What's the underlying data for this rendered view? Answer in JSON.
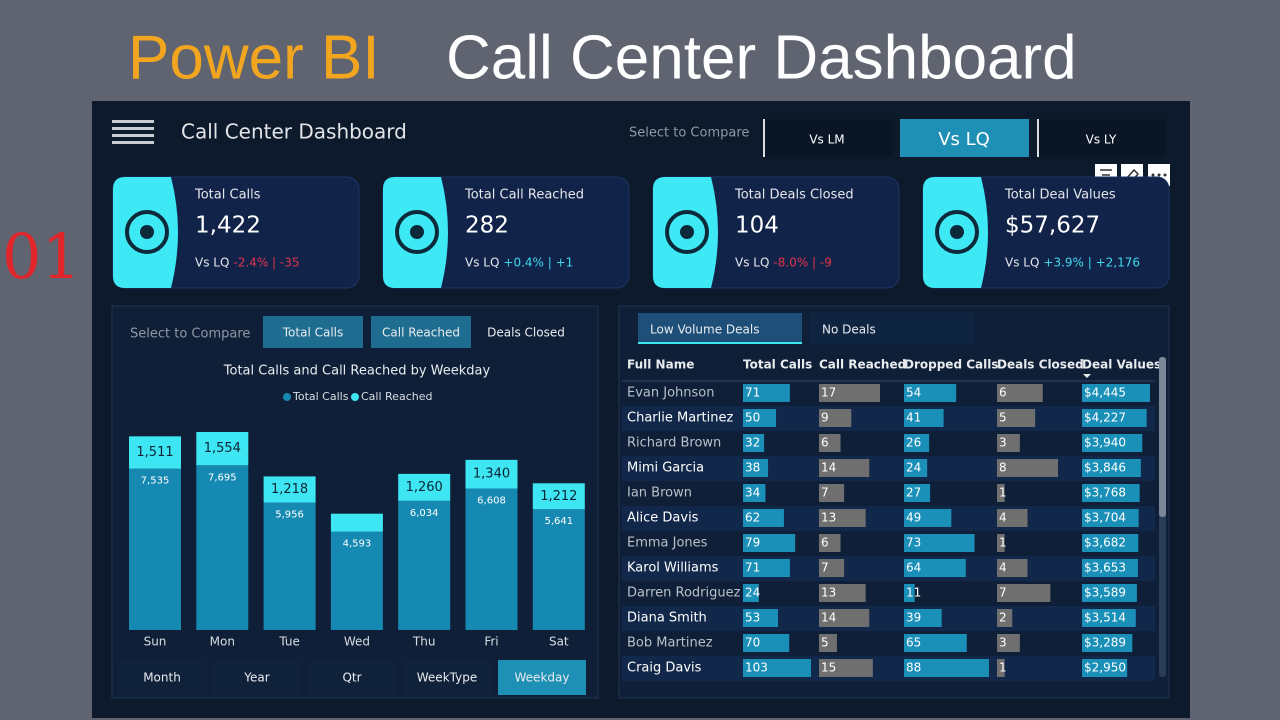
{
  "header": {
    "title_highlight": "Power BI",
    "title_rest": "Call Center Dashboard"
  },
  "side_mark": "01",
  "dashboard": {
    "title": "Call Center Dashboard",
    "compare_label": "Select to Compare",
    "compare_options": [
      "Vs LM",
      "Vs LQ",
      "Vs LY"
    ],
    "selected_compare": 1
  },
  "kpis": [
    {
      "label": "Total Calls",
      "value": "1,422",
      "compare": "Vs LQ",
      "change": "-2.4% | -35",
      "change_color": "#e0334a"
    },
    {
      "label": "Total Call Reached",
      "value": "282",
      "compare": "Vs LQ",
      "change": "+0.4% | +1",
      "change_color": "#3ed8ea"
    },
    {
      "label": "Total Deals Closed",
      "value": "104",
      "compare": "Vs LQ",
      "change": "-8.0% | -9",
      "change_color": "#e0334a"
    },
    {
      "label": "Total Deal Values",
      "value": "$57,627",
      "compare": "Vs LQ",
      "change": "+3.9% | +2,176",
      "change_color": "#3ed8ea"
    }
  ],
  "chart_data": {
    "type": "bar",
    "stacked": true,
    "compare_label": "Select to Compare",
    "toggles": [
      "Total Calls",
      "Call Reached",
      "Deals Closed"
    ],
    "selected_toggles": [
      0,
      1
    ],
    "title": "Total Calls and Call Reached by Weekday",
    "categories": [
      "Sun",
      "Mon",
      "Tue",
      "Wed",
      "Thu",
      "Fri",
      "Sat"
    ],
    "series": [
      {
        "name": "Total Calls",
        "color": "#1689b3",
        "values": [
          7535,
          7695,
          5956,
          4593,
          6034,
          6608,
          5641
        ],
        "value_labels": [
          "7,535",
          "7,695",
          "5,956",
          "4,593",
          "6,034",
          "6,608",
          "5,641"
        ]
      },
      {
        "name": "Call Reached",
        "color": "#3de6f2",
        "values": [
          1511,
          1554,
          1218,
          840,
          1260,
          1340,
          1212
        ],
        "value_labels": [
          "1,511",
          "1,554",
          "1,218",
          null,
          "1,260",
          "1,340",
          "1,212"
        ]
      }
    ],
    "period_options": [
      "Month",
      "Year",
      "Qtr",
      "WeekType",
      "Weekday"
    ],
    "selected_period": 4
  },
  "table": {
    "tabs": [
      "Low Volume Deals",
      "No Deals"
    ],
    "selected_tab": 0,
    "columns": [
      "Full Name",
      "Total Calls",
      "Call Reached",
      "Dropped Calls",
      "Deals Closed",
      "Deal Values"
    ],
    "bar_colors": [
      null,
      "#1a8fb8",
      "#6f6f6f",
      "#1a8fb8",
      "#6f6f6f",
      "#1a8fb8"
    ],
    "rows": [
      [
        "Evan Johnson",
        71,
        17,
        54,
        6,
        {
          "value": 4445,
          "label": "$4,445"
        }
      ],
      [
        "Charlie Martinez",
        50,
        9,
        41,
        5,
        {
          "value": 4227,
          "label": "$4,227"
        }
      ],
      [
        "Richard Brown",
        32,
        6,
        26,
        3,
        {
          "value": 3940,
          "label": "$3,940"
        }
      ],
      [
        "Mimi Garcia",
        38,
        14,
        24,
        8,
        {
          "value": 3846,
          "label": "$3,846"
        }
      ],
      [
        "Ian Brown",
        34,
        7,
        27,
        1,
        {
          "value": 3768,
          "label": "$3,768"
        }
      ],
      [
        "Alice Davis",
        62,
        13,
        49,
        4,
        {
          "value": 3704,
          "label": "$3,704"
        }
      ],
      [
        "Emma Jones",
        79,
        6,
        73,
        1,
        {
          "value": 3682,
          "label": "$3,682"
        }
      ],
      [
        "Karol Williams",
        71,
        7,
        64,
        4,
        {
          "value": 3653,
          "label": "$3,653"
        }
      ],
      [
        "Darren Rodriguez",
        24,
        13,
        11,
        7,
        {
          "value": 3589,
          "label": "$3,589"
        }
      ],
      [
        "Diana Smith",
        53,
        14,
        39,
        2,
        {
          "value": 3514,
          "label": "$3,514"
        }
      ],
      [
        "Bob Martinez",
        70,
        5,
        65,
        3,
        {
          "value": 3289,
          "label": "$3,289"
        }
      ],
      [
        "Craig Davis",
        103,
        15,
        88,
        1,
        {
          "value": 2950,
          "label": "$2,950"
        }
      ]
    ]
  }
}
